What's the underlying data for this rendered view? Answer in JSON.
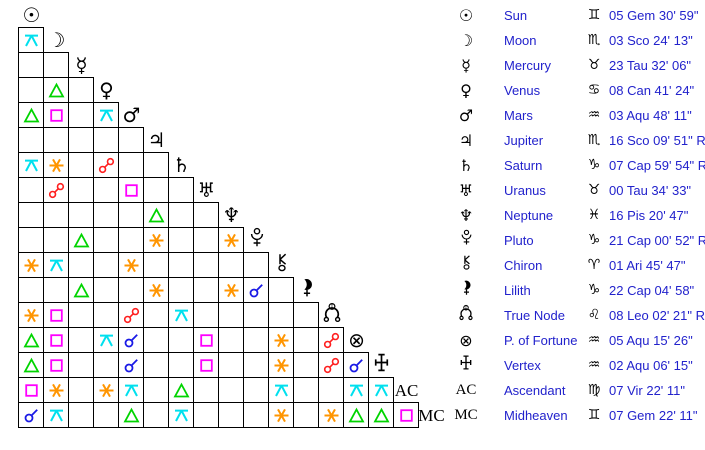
{
  "table": {
    "text_color": "#2222cc",
    "glyph_color": "#000000"
  },
  "planets": [
    {
      "name": "Sun",
      "glyph": "sun",
      "sign": "Gem",
      "position": "05 Gem 30' 59\""
    },
    {
      "name": "Moon",
      "glyph": "moon",
      "sign": "Sco",
      "position": "03 Sco 24' 13\""
    },
    {
      "name": "Mercury",
      "glyph": "mercury",
      "sign": "Tau",
      "position": "23 Tau 32' 06\""
    },
    {
      "name": "Venus",
      "glyph": "venus",
      "sign": "Can",
      "position": "08 Can 41' 24\""
    },
    {
      "name": "Mars",
      "glyph": "mars",
      "sign": "Aqu",
      "position": "03 Aqu 48' 11\""
    },
    {
      "name": "Jupiter",
      "glyph": "jupiter",
      "sign": "Sco",
      "position": "16 Sco 09' 51\" R"
    },
    {
      "name": "Saturn",
      "glyph": "saturn",
      "sign": "Cap",
      "position": "07 Cap 59' 54\" R"
    },
    {
      "name": "Uranus",
      "glyph": "uranus",
      "sign": "Tau",
      "position": "00 Tau 34' 33\""
    },
    {
      "name": "Neptune",
      "glyph": "neptune",
      "sign": "Pis",
      "position": "16 Pis 20' 47\""
    },
    {
      "name": "Pluto",
      "glyph": "pluto",
      "sign": "Cap",
      "position": "21 Cap 00' 52\" R"
    },
    {
      "name": "Chiron",
      "glyph": "chiron",
      "sign": "Ari",
      "position": "01 Ari 45' 47\""
    },
    {
      "name": "Lilith",
      "glyph": "lilith",
      "sign": "Cap",
      "position": "22 Cap 04' 58\""
    },
    {
      "name": "True Node",
      "glyph": "true-node",
      "sign": "Leo",
      "position": "08 Leo 02' 21\" R"
    },
    {
      "name": "P. of Fortune",
      "glyph": "fortune",
      "sign": "Aqu",
      "position": "05 Aqu 15' 26\""
    },
    {
      "name": "Vertex",
      "glyph": "vertex",
      "sign": "Aqu",
      "position": "02 Aqu 06' 15\""
    },
    {
      "name": "Ascendant",
      "glyph": "ascendant",
      "sign": "Vir",
      "position": "07 Vir 22' 11\""
    },
    {
      "name": "Midheaven",
      "glyph": "midheaven",
      "sign": "Gem",
      "position": "07 Gem 22' 11\""
    }
  ],
  "axis_labels": {
    "ascendant": "AC",
    "midheaven": "MC"
  },
  "planet_glyph_chars": {
    "sun": "☉",
    "moon": "☽",
    "mercury": "☿",
    "venus": "♀",
    "mars": "♂",
    "jupiter": "♃",
    "saturn": "♄",
    "uranus": "♅",
    "neptune": "♆",
    "fortune": "⊗"
  },
  "sign_glyph_chars": {
    "Ari": "♈",
    "Tau": "♉",
    "Gem": "♊",
    "Can": "♋",
    "Leo": "♌",
    "Vir": "♍",
    "Lib": "♎",
    "Sco": "♏",
    "Sag": "♐",
    "Cap": "♑",
    "Aqu": "♒",
    "Pis": "♓"
  },
  "aspect_types": {
    "conjunction": {
      "color": "#1a1ae6"
    },
    "sextile": {
      "color": "#ff9500"
    },
    "square": {
      "color": "#ff00ff"
    },
    "trine": {
      "color": "#00d400"
    },
    "opposition": {
      "color": "#ff1f1f"
    },
    "quincunx": {
      "color": "#00e0ee"
    }
  },
  "aspect_grid": [
    {},
    {
      "0": "quincunx"
    },
    {},
    {
      "1": "trine"
    },
    {
      "0": "trine",
      "1": "square",
      "3": "quincunx"
    },
    {},
    {
      "0": "quincunx",
      "1": "sextile",
      "3": "opposition"
    },
    {
      "1": "opposition",
      "4": "square"
    },
    {
      "5": "trine"
    },
    {
      "2": "trine",
      "5": "sextile",
      "8": "sextile"
    },
    {
      "0": "sextile",
      "1": "quincunx",
      "4": "sextile"
    },
    {
      "2": "trine",
      "5": "sextile",
      "8": "sextile",
      "9": "conjunction"
    },
    {
      "0": "sextile",
      "1": "square",
      "4": "opposition",
      "6": "quincunx"
    },
    {
      "0": "trine",
      "1": "square",
      "3": "quincunx",
      "4": "conjunction",
      "7": "square",
      "10": "sextile",
      "12": "opposition"
    },
    {
      "0": "trine",
      "1": "square",
      "4": "conjunction",
      "7": "square",
      "10": "sextile",
      "12": "opposition",
      "13": "conjunction"
    },
    {
      "0": "square",
      "1": "sextile",
      "3": "sextile",
      "4": "quincunx",
      "6": "trine",
      "10": "quincunx",
      "13": "quincunx",
      "14": "quincunx"
    },
    {
      "0": "conjunction",
      "1": "quincunx",
      "4": "trine",
      "6": "quincunx",
      "10": "sextile",
      "12": "sextile",
      "13": "trine",
      "14": "trine",
      "15": "square"
    }
  ]
}
